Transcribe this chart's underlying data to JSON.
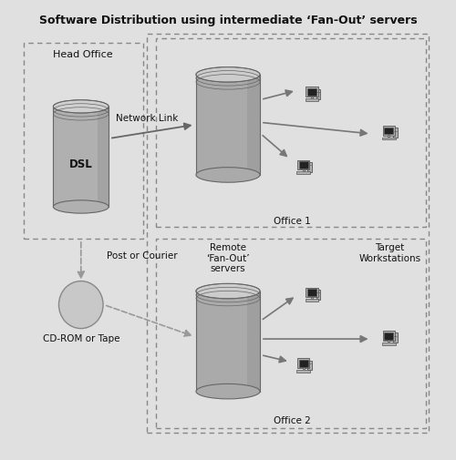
{
  "title": "Software Distribution using intermediate ‘Fan-Out’ servers",
  "bg_color": "#e0e0e0",
  "figure_bg": "#e0e0e0",
  "labels": {
    "head_office": "Head Office",
    "dsl": "DSL",
    "network_link": "Network Link",
    "post_courier": "Post or Courier",
    "cd_rom": "CD-ROM or Tape",
    "remote_servers": "Remote\n‘Fan-Out’\nservers",
    "target_ws": "Target\nWorkstations",
    "office1": "Office 1",
    "office2": "Office 2"
  },
  "colors": {
    "dsl_body": "#b0b0b0",
    "dsl_top": "#d0d0d0",
    "fanout_body": "#aaaaaa",
    "fanout_top": "#cccccc",
    "cd_fill": "#c8c8c8",
    "box_dash": "#888888",
    "arrow_solid": "#777777",
    "arrow_dash": "#999999",
    "text": "#111111",
    "ws_gray": "#b0b0b0",
    "ws_dark": "#555555",
    "ws_screen": "#222222"
  }
}
